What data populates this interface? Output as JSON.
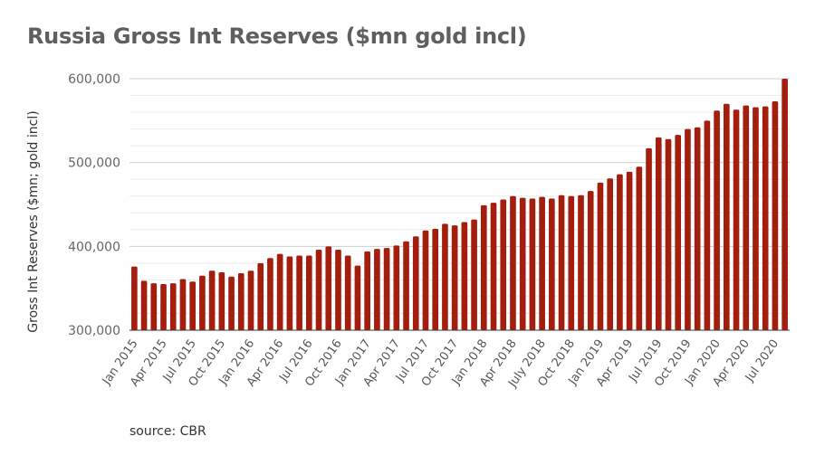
{
  "chart_data": {
    "type": "bar",
    "title": "Russia Gross Int Reserves ($mn gold incl)",
    "ylabel": "Gross Int Reserves ($mn; gold incl)",
    "xlabel": "",
    "ylim": [
      300000,
      600000
    ],
    "y_ticks": [
      "300,000",
      "400,000",
      "500,000",
      "600,000"
    ],
    "y_tick_values": [
      300000,
      400000,
      500000,
      600000
    ],
    "grid": true,
    "bar_color": "#a41e0e",
    "categories": [
      "Jan 2015",
      "Feb 2015",
      "Mar 2015",
      "Apr 2015",
      "May 2015",
      "Jun 2015",
      "Jul 2015",
      "Aug 2015",
      "Sep 2015",
      "Oct 2015",
      "Nov 2015",
      "Dec 2015",
      "Jan 2016",
      "Feb 2016",
      "Mar 2016",
      "Apr 2016",
      "May 2016",
      "Jun 2016",
      "Jul 2016",
      "Aug 2016",
      "Sep 2016",
      "Oct 2016",
      "Nov 2016",
      "Dec 2016",
      "Jan 2017",
      "Feb 2017",
      "Mar 2017",
      "Apr 2017",
      "May 2017",
      "Jun 2017",
      "Jul 2017",
      "Aug 2017",
      "Sep 2017",
      "Oct 2017",
      "Nov 2017",
      "Dec 2017",
      "Jan 2018",
      "Feb 2018",
      "Mar 2018",
      "Apr 2018",
      "May 2018",
      "Jun 2018",
      "July 2018",
      "Aug 2018",
      "Sep 2018",
      "Oct 2018",
      "Nov 2018",
      "Dec 2018",
      "Jan 2019",
      "Feb 2019",
      "Mar 2019",
      "Apr 2019",
      "May 2019",
      "Jun 2019",
      "Jul 2019",
      "Aug 2019",
      "Sep 2019",
      "Oct 2019",
      "Nov 2019",
      "Dec 2019",
      "Jan 2020",
      "Feb 2020",
      "Mar 2020",
      "Apr 2020",
      "May 2020",
      "Jun 2020",
      "Jul 2020",
      "Aug 2020"
    ],
    "x_tick_labels": [
      "Jan 2015",
      "Apr 2015",
      "Jul 2015",
      "Oct 2015",
      "Jan 2016",
      "Apr 2016",
      "Jul 2016",
      "Oct 2016",
      "Jan 2017",
      "Apr 2017",
      "Jul 2017",
      "Oct 2017",
      "Jan 2018",
      "Apr 2018",
      "July 2018",
      "Oct 2018",
      "Jan 2019",
      "Apr 2019",
      "Jul 2019",
      "Oct 2019",
      "Jan 2020",
      "Apr 2020",
      "Jul 2020"
    ],
    "values": [
      376000,
      359000,
      356000,
      355000,
      356000,
      361000,
      358000,
      365000,
      371000,
      369000,
      364000,
      368000,
      371000,
      380000,
      386000,
      391000,
      388000,
      389000,
      389000,
      396000,
      400000,
      396000,
      389000,
      377000,
      394000,
      397000,
      398000,
      401000,
      406000,
      412000,
      419000,
      421000,
      427000,
      425000,
      429000,
      432000,
      449000,
      452000,
      456000,
      460000,
      458000,
      457000,
      459000,
      457000,
      461000,
      460000,
      461000,
      466000,
      476000,
      481000,
      486000,
      489000,
      495000,
      517000,
      530000,
      528000,
      533000,
      540000,
      542000,
      550000,
      562000,
      570000,
      563000,
      568000,
      566000,
      567000,
      573000,
      600000
    ]
  },
  "source_text": "source: CBR"
}
